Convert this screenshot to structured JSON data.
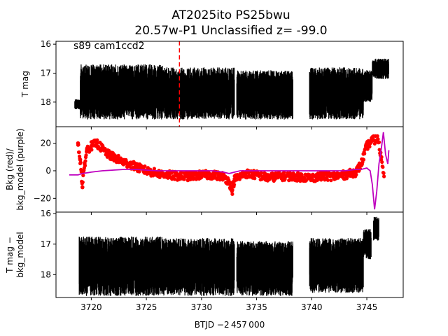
{
  "title_line1": "AT2025ito  PS25bwu",
  "title_line2": "20.57w-P1 Unclassified z= -99.0",
  "xlabel": "BTJD −2 457 000",
  "colors": {
    "data": "#000000",
    "bkg": "#ff0000",
    "bkg_model": "#bf00bf",
    "marker_line": "#ff0000"
  },
  "chart_data": [
    {
      "type": "scatter",
      "panel": "top",
      "ylabel": "T mag",
      "annotation": "s89 cam1ccd2",
      "y_inverted": true,
      "xlim": [
        3716.8,
        3748.3
      ],
      "ylim": [
        18.85,
        15.9
      ],
      "xticks": [
        3720,
        3725,
        3730,
        3735,
        3740,
        3745
      ],
      "yticks": [
        16,
        17,
        18
      ],
      "ytick_labels": [
        "16",
        "17",
        "18"
      ],
      "vline_x": 3728.0,
      "series": [
        {
          "segments": [
            {
              "x_start": 3718.5,
              "x_end": 3719.0,
              "y_lo": 17.9,
              "y_hi": 18.25
            },
            {
              "x_start": 3719.0,
              "x_end": 3726.5,
              "y_lo": 16.7,
              "y_hi": 18.6
            },
            {
              "x_start": 3726.5,
              "x_end": 3733.0,
              "y_lo": 16.8,
              "y_hi": 18.6
            },
            {
              "x_start": 3733.2,
              "x_end": 3738.3,
              "y_lo": 16.9,
              "y_hi": 18.6
            },
            {
              "x_start": 3739.8,
              "x_end": 3744.7,
              "y_lo": 16.8,
              "y_hi": 18.6
            },
            {
              "x_start": 3744.7,
              "x_end": 3745.5,
              "y_lo": 16.9,
              "y_hi": 18.0
            },
            {
              "x_start": 3745.5,
              "x_end": 3747.0,
              "y_lo": 16.5,
              "y_hi": 17.2
            }
          ]
        }
      ]
    },
    {
      "type": "scatter",
      "panel": "middle",
      "ylabel": "Bkg (red)/\nbkg_model (purple)",
      "xlim": [
        3716.8,
        3748.3
      ],
      "ylim": [
        -30,
        32
      ],
      "yticks": [
        -20,
        0,
        20
      ],
      "ytick_labels": [
        "−20",
        "0",
        "20"
      ],
      "series": [
        {
          "name": "Bkg",
          "color": "#ff0000",
          "points_x": [
            3718.8,
            3719.0,
            3719.2,
            3719.4,
            3719.6,
            3720.0,
            3720.5,
            3721.0,
            3721.5,
            3722.0,
            3722.5,
            3723.0,
            3723.5,
            3724.0,
            3725.0,
            3726.0,
            3727.0,
            3728.0,
            3729.0,
            3730.0,
            3731.0,
            3732.0,
            3732.5,
            3732.8,
            3733.0,
            3733.5,
            3734.0,
            3735.0,
            3736.0,
            3737.0,
            3738.0,
            3740.0,
            3741.0,
            3742.0,
            3743.0,
            3744.0,
            3744.5,
            3745.0,
            3745.5,
            3746.0,
            3746.3,
            3746.6
          ],
          "points_y": [
            20,
            8,
            -12,
            5,
            15,
            18,
            20,
            16,
            12,
            10,
            8,
            6,
            5,
            3,
            0,
            -2,
            -3,
            -4,
            -4,
            -3,
            -3,
            -4,
            -8,
            -14,
            -6,
            -4,
            -2,
            -3,
            -5,
            -4,
            -4,
            -5,
            -4,
            -4,
            -3,
            -1,
            5,
            18,
            22,
            23,
            10,
            -5
          ]
        },
        {
          "name": "bkg_model",
          "color": "#bf00bf",
          "points_x": [
            3718.0,
            3718.8,
            3719.2,
            3720.0,
            3721.0,
            3722.0,
            3723.0,
            3724.0,
            3725.0,
            3726.0,
            3727.0,
            3728.0,
            3729.0,
            3730.0,
            3731.0,
            3732.0,
            3732.5,
            3733.0,
            3733.5,
            3734.0,
            3735.0,
            3736.0,
            3737.0,
            3738.0,
            3739.0,
            3740.0,
            3741.0,
            3742.0,
            3743.0,
            3744.0,
            3744.5,
            3745.0,
            3745.3,
            3745.5,
            3745.7,
            3745.9,
            3746.1,
            3746.3,
            3746.5,
            3746.7,
            3746.9,
            3747.0
          ],
          "points_y": [
            -3,
            -3,
            -2,
            -1,
            0,
            0.5,
            1,
            1,
            0.5,
            0,
            0,
            0,
            0,
            0,
            0,
            -1,
            -2,
            -1,
            0,
            0,
            0,
            0,
            0,
            0,
            0,
            0,
            0,
            0,
            0,
            1,
            1,
            2,
            0,
            -10,
            -28,
            -15,
            5,
            15,
            28,
            12,
            5,
            15
          ]
        }
      ]
    },
    {
      "type": "scatter",
      "panel": "bottom",
      "ylabel": "T mag −\nbkg_model",
      "y_inverted": true,
      "xlim": [
        3716.8,
        3748.3
      ],
      "ylim": [
        18.75,
        15.95
      ],
      "xticks": [
        3720,
        3725,
        3730,
        3735,
        3740,
        3745
      ],
      "xtick_labels": [
        "3720",
        "3725",
        "3730",
        "3735",
        "3740",
        "3745"
      ],
      "yticks": [
        16,
        17,
        18
      ],
      "ytick_labels": [
        "16",
        "17",
        "18"
      ],
      "series": [
        {
          "segments": [
            {
              "x_start": 3718.9,
              "x_end": 3726.5,
              "y_lo": 16.75,
              "y_hi": 18.7
            },
            {
              "x_start": 3726.5,
              "x_end": 3733.0,
              "y_lo": 16.8,
              "y_hi": 18.7
            },
            {
              "x_start": 3733.2,
              "x_end": 3738.3,
              "y_lo": 16.9,
              "y_hi": 18.7
            },
            {
              "x_start": 3739.8,
              "x_end": 3744.7,
              "y_lo": 16.8,
              "y_hi": 18.6
            },
            {
              "x_start": 3744.7,
              "x_end": 3745.4,
              "y_lo": 16.5,
              "y_hi": 17.5
            },
            {
              "x_start": 3745.6,
              "x_end": 3746.1,
              "y_lo": 16.1,
              "y_hi": 16.9
            }
          ]
        }
      ]
    }
  ]
}
